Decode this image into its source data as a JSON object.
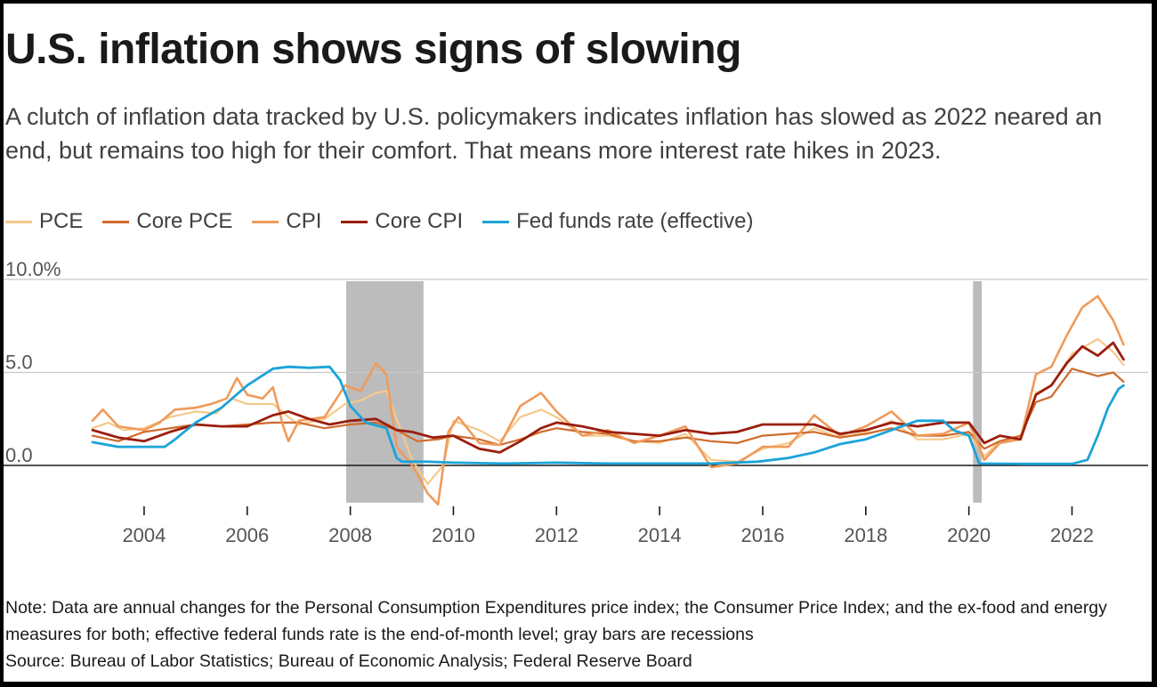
{
  "title": "U.S. inflation shows signs of slowing",
  "subtitle": "A clutch of inflation data tracked by U.S. policymakers indicates inflation has slowed as 2022 neared an end, but remains too high for their comfort. That means more interest rate hikes in 2023.",
  "note": "Note: Data are annual changes for the Personal Consumption Expenditures price index; the Consumer Price Index; and the ex-food and energy measures for both; effective federal funds rate is the end-of-month level; gray bars are recessions",
  "source": "Source: Bureau of Labor Statistics; Bureau of Economic Analysis; Federal Reserve Board",
  "chart_data": {
    "type": "line",
    "title": "U.S. inflation shows signs of slowing",
    "xlabel": "",
    "ylabel": "",
    "xlim": [
      2003.0,
      2023.2
    ],
    "ylim": [
      -2,
      10
    ],
    "grid": true,
    "legend_position": "top-left",
    "y_ticks": [
      {
        "value": 0,
        "label": "0.0"
      },
      {
        "value": 5,
        "label": "5.0"
      },
      {
        "value": 10,
        "label": "10.0%"
      }
    ],
    "x_ticks": [
      {
        "value": 2004,
        "label": "2004"
      },
      {
        "value": 2006,
        "label": "2006"
      },
      {
        "value": 2008,
        "label": "2008"
      },
      {
        "value": 2010,
        "label": "2010"
      },
      {
        "value": 2012,
        "label": "2012"
      },
      {
        "value": 2014,
        "label": "2014"
      },
      {
        "value": 2016,
        "label": "2016"
      },
      {
        "value": 2018,
        "label": "2018"
      },
      {
        "value": 2020,
        "label": "2020"
      },
      {
        "value": 2022,
        "label": "2022"
      }
    ],
    "recessions": [
      {
        "start": 2007.92,
        "end": 2009.42
      },
      {
        "start": 2020.08,
        "end": 2020.25
      }
    ],
    "series": [
      {
        "name": "PCE",
        "color": "#f5c98a",
        "width": 2.2,
        "points": [
          [
            2003.0,
            2.0
          ],
          [
            2003.3,
            2.3
          ],
          [
            2003.6,
            1.9
          ],
          [
            2004.0,
            2.0
          ],
          [
            2004.5,
            2.6
          ],
          [
            2005.0,
            2.9
          ],
          [
            2005.4,
            2.8
          ],
          [
            2005.7,
            3.6
          ],
          [
            2006.0,
            3.3
          ],
          [
            2006.5,
            3.3
          ],
          [
            2006.8,
            2.6
          ],
          [
            2007.0,
            2.2
          ],
          [
            2007.5,
            2.5
          ],
          [
            2007.9,
            3.3
          ],
          [
            2008.2,
            3.5
          ],
          [
            2008.5,
            3.9
          ],
          [
            2008.7,
            4.0
          ],
          [
            2008.9,
            2.5
          ],
          [
            2009.2,
            0.3
          ],
          [
            2009.5,
            -1.0
          ],
          [
            2009.8,
            0.0
          ],
          [
            2010.0,
            2.4
          ],
          [
            2010.5,
            1.9
          ],
          [
            2010.9,
            1.3
          ],
          [
            2011.3,
            2.6
          ],
          [
            2011.7,
            3.0
          ],
          [
            2012.0,
            2.6
          ],
          [
            2012.5,
            1.6
          ],
          [
            2013.0,
            1.6
          ],
          [
            2013.5,
            1.3
          ],
          [
            2014.0,
            1.2
          ],
          [
            2014.5,
            1.7
          ],
          [
            2015.0,
            0.3
          ],
          [
            2015.5,
            0.2
          ],
          [
            2016.0,
            0.9
          ],
          [
            2016.5,
            1.2
          ],
          [
            2017.0,
            2.0
          ],
          [
            2017.5,
            1.5
          ],
          [
            2018.0,
            1.8
          ],
          [
            2018.5,
            2.4
          ],
          [
            2019.0,
            1.4
          ],
          [
            2019.5,
            1.4
          ],
          [
            2020.0,
            1.7
          ],
          [
            2020.3,
            0.5
          ],
          [
            2020.6,
            1.3
          ],
          [
            2021.0,
            1.5
          ],
          [
            2021.3,
            3.9
          ],
          [
            2021.6,
            4.3
          ],
          [
            2022.0,
            6.0
          ],
          [
            2022.5,
            6.8
          ],
          [
            2022.8,
            6.1
          ],
          [
            2023.0,
            5.4
          ]
        ]
      },
      {
        "name": "Core PCE",
        "color": "#d06b2c",
        "width": 2.2,
        "points": [
          [
            2003.0,
            1.6
          ],
          [
            2003.5,
            1.3
          ],
          [
            2004.0,
            1.8
          ],
          [
            2004.5,
            2.0
          ],
          [
            2005.0,
            2.2
          ],
          [
            2005.5,
            2.1
          ],
          [
            2006.0,
            2.2
          ],
          [
            2006.5,
            2.3
          ],
          [
            2007.0,
            2.3
          ],
          [
            2007.5,
            2.0
          ],
          [
            2008.0,
            2.2
          ],
          [
            2008.5,
            2.3
          ],
          [
            2008.9,
            1.9
          ],
          [
            2009.3,
            1.3
          ],
          [
            2009.7,
            1.4
          ],
          [
            2010.0,
            1.6
          ],
          [
            2010.5,
            1.4
          ],
          [
            2010.9,
            1.1
          ],
          [
            2011.3,
            1.4
          ],
          [
            2011.7,
            1.8
          ],
          [
            2012.0,
            2.0
          ],
          [
            2012.5,
            1.8
          ],
          [
            2013.0,
            1.7
          ],
          [
            2013.5,
            1.3
          ],
          [
            2014.0,
            1.3
          ],
          [
            2014.5,
            1.5
          ],
          [
            2015.0,
            1.3
          ],
          [
            2015.5,
            1.2
          ],
          [
            2016.0,
            1.6
          ],
          [
            2016.5,
            1.7
          ],
          [
            2017.0,
            1.8
          ],
          [
            2017.5,
            1.5
          ],
          [
            2018.0,
            1.7
          ],
          [
            2018.5,
            2.0
          ],
          [
            2019.0,
            1.6
          ],
          [
            2019.5,
            1.6
          ],
          [
            2020.0,
            1.8
          ],
          [
            2020.3,
            0.9
          ],
          [
            2020.6,
            1.3
          ],
          [
            2021.0,
            1.6
          ],
          [
            2021.3,
            3.4
          ],
          [
            2021.6,
            3.7
          ],
          [
            2022.0,
            5.2
          ],
          [
            2022.5,
            4.8
          ],
          [
            2022.8,
            5.0
          ],
          [
            2023.0,
            4.5
          ]
        ]
      },
      {
        "name": "CPI",
        "color": "#ef9b5b",
        "width": 2.6,
        "points": [
          [
            2003.0,
            2.4
          ],
          [
            2003.2,
            3.0
          ],
          [
            2003.5,
            2.1
          ],
          [
            2004.0,
            1.9
          ],
          [
            2004.3,
            2.3
          ],
          [
            2004.6,
            3.0
          ],
          [
            2005.0,
            3.1
          ],
          [
            2005.3,
            3.3
          ],
          [
            2005.6,
            3.6
          ],
          [
            2005.8,
            4.7
          ],
          [
            2006.0,
            3.8
          ],
          [
            2006.3,
            3.6
          ],
          [
            2006.5,
            4.2
          ],
          [
            2006.7,
            2.1
          ],
          [
            2006.8,
            1.3
          ],
          [
            2007.0,
            2.4
          ],
          [
            2007.5,
            2.6
          ],
          [
            2007.9,
            4.3
          ],
          [
            2008.2,
            4.0
          ],
          [
            2008.5,
            5.5
          ],
          [
            2008.7,
            4.9
          ],
          [
            2008.9,
            1.0
          ],
          [
            2009.2,
            0.0
          ],
          [
            2009.5,
            -1.5
          ],
          [
            2009.7,
            -2.1
          ],
          [
            2009.9,
            1.8
          ],
          [
            2010.1,
            2.6
          ],
          [
            2010.5,
            1.2
          ],
          [
            2010.9,
            1.1
          ],
          [
            2011.3,
            3.2
          ],
          [
            2011.7,
            3.9
          ],
          [
            2012.0,
            2.9
          ],
          [
            2012.5,
            1.6
          ],
          [
            2013.0,
            1.9
          ],
          [
            2013.5,
            1.2
          ],
          [
            2014.0,
            1.6
          ],
          [
            2014.5,
            2.1
          ],
          [
            2015.0,
            -0.1
          ],
          [
            2015.5,
            0.1
          ],
          [
            2016.0,
            1.0
          ],
          [
            2016.5,
            1.0
          ],
          [
            2017.0,
            2.7
          ],
          [
            2017.5,
            1.6
          ],
          [
            2018.0,
            2.1
          ],
          [
            2018.5,
            2.9
          ],
          [
            2019.0,
            1.6
          ],
          [
            2019.5,
            1.7
          ],
          [
            2020.0,
            2.3
          ],
          [
            2020.3,
            0.3
          ],
          [
            2020.6,
            1.2
          ],
          [
            2021.0,
            1.4
          ],
          [
            2021.3,
            4.9
          ],
          [
            2021.6,
            5.3
          ],
          [
            2021.9,
            7.0
          ],
          [
            2022.2,
            8.5
          ],
          [
            2022.5,
            9.1
          ],
          [
            2022.8,
            7.8
          ],
          [
            2023.0,
            6.5
          ]
        ]
      },
      {
        "name": "Core CPI",
        "color": "#9a1e0e",
        "width": 2.8,
        "points": [
          [
            2003.0,
            1.9
          ],
          [
            2003.5,
            1.5
          ],
          [
            2004.0,
            1.3
          ],
          [
            2004.5,
            1.8
          ],
          [
            2005.0,
            2.2
          ],
          [
            2005.5,
            2.1
          ],
          [
            2006.0,
            2.1
          ],
          [
            2006.5,
            2.7
          ],
          [
            2006.8,
            2.9
          ],
          [
            2007.2,
            2.5
          ],
          [
            2007.6,
            2.2
          ],
          [
            2008.0,
            2.4
          ],
          [
            2008.5,
            2.5
          ],
          [
            2008.9,
            1.9
          ],
          [
            2009.2,
            1.8
          ],
          [
            2009.6,
            1.5
          ],
          [
            2010.0,
            1.6
          ],
          [
            2010.5,
            0.9
          ],
          [
            2010.9,
            0.7
          ],
          [
            2011.3,
            1.3
          ],
          [
            2011.7,
            2.0
          ],
          [
            2012.0,
            2.3
          ],
          [
            2012.5,
            2.1
          ],
          [
            2013.0,
            1.8
          ],
          [
            2013.5,
            1.7
          ],
          [
            2014.0,
            1.6
          ],
          [
            2014.5,
            1.9
          ],
          [
            2015.0,
            1.7
          ],
          [
            2015.5,
            1.8
          ],
          [
            2016.0,
            2.2
          ],
          [
            2016.5,
            2.2
          ],
          [
            2017.0,
            2.2
          ],
          [
            2017.5,
            1.7
          ],
          [
            2018.0,
            1.9
          ],
          [
            2018.5,
            2.3
          ],
          [
            2019.0,
            2.1
          ],
          [
            2019.5,
            2.3
          ],
          [
            2020.0,
            2.3
          ],
          [
            2020.3,
            1.2
          ],
          [
            2020.6,
            1.6
          ],
          [
            2021.0,
            1.4
          ],
          [
            2021.3,
            3.8
          ],
          [
            2021.6,
            4.3
          ],
          [
            2021.9,
            5.5
          ],
          [
            2022.2,
            6.4
          ],
          [
            2022.5,
            5.9
          ],
          [
            2022.8,
            6.6
          ],
          [
            2023.0,
            5.7
          ]
        ]
      },
      {
        "name": "Fed funds rate (effective)",
        "color": "#1ba3d8",
        "width": 2.8,
        "points": [
          [
            2003.0,
            1.25
          ],
          [
            2003.5,
            1.0
          ],
          [
            2004.0,
            1.0
          ],
          [
            2004.4,
            1.0
          ],
          [
            2004.6,
            1.4
          ],
          [
            2005.0,
            2.3
          ],
          [
            2005.5,
            3.1
          ],
          [
            2006.0,
            4.3
          ],
          [
            2006.5,
            5.2
          ],
          [
            2006.8,
            5.3
          ],
          [
            2007.2,
            5.25
          ],
          [
            2007.6,
            5.3
          ],
          [
            2007.8,
            4.6
          ],
          [
            2008.0,
            3.2
          ],
          [
            2008.3,
            2.3
          ],
          [
            2008.7,
            2.0
          ],
          [
            2008.9,
            0.4
          ],
          [
            2009.0,
            0.2
          ],
          [
            2009.5,
            0.2
          ],
          [
            2010.0,
            0.15
          ],
          [
            2011.0,
            0.1
          ],
          [
            2012.0,
            0.15
          ],
          [
            2013.0,
            0.1
          ],
          [
            2014.0,
            0.1
          ],
          [
            2015.0,
            0.1
          ],
          [
            2015.9,
            0.2
          ],
          [
            2016.5,
            0.4
          ],
          [
            2017.0,
            0.7
          ],
          [
            2017.5,
            1.15
          ],
          [
            2018.0,
            1.4
          ],
          [
            2018.5,
            1.9
          ],
          [
            2019.0,
            2.4
          ],
          [
            2019.5,
            2.4
          ],
          [
            2019.7,
            1.9
          ],
          [
            2020.0,
            1.6
          ],
          [
            2020.2,
            0.1
          ],
          [
            2021.0,
            0.08
          ],
          [
            2022.0,
            0.08
          ],
          [
            2022.3,
            0.3
          ],
          [
            2022.5,
            1.6
          ],
          [
            2022.7,
            3.1
          ],
          [
            2022.9,
            4.1
          ],
          [
            2023.0,
            4.3
          ]
        ]
      }
    ]
  }
}
